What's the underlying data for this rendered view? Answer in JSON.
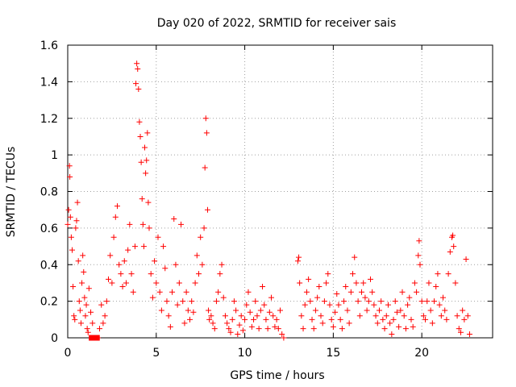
{
  "chart_data": {
    "type": "scatter",
    "title": "Day 020 of 2022, SRMTID for receiver sais",
    "xlabel": "GPS time / hours",
    "ylabel": "SRMTID / TECUs",
    "xlim": [
      0,
      24
    ],
    "ylim": [
      0,
      1.6
    ],
    "xticks": [
      0,
      5,
      10,
      15,
      20
    ],
    "xtick_labels": [
      "0",
      "5",
      "10",
      "15",
      "20"
    ],
    "yticks": [
      0,
      0.2,
      0.4,
      0.6,
      0.8,
      1.0,
      1.2,
      1.4,
      1.6
    ],
    "ytick_labels": [
      "0",
      "0.2",
      "0.4",
      "0.6",
      "0.8",
      "1",
      "1.2",
      "1.4",
      "1.6"
    ],
    "grid": true,
    "legend": "none",
    "marker": "+",
    "color": "#ff0000",
    "series": [
      {
        "name": "SRMTID",
        "points": [
          [
            0.0,
            0.62
          ],
          [
            0.05,
            0.7
          ],
          [
            0.1,
            0.94
          ],
          [
            0.12,
            0.88
          ],
          [
            0.15,
            0.66
          ],
          [
            0.2,
            0.55
          ],
          [
            0.25,
            0.48
          ],
          [
            0.3,
            0.28
          ],
          [
            0.35,
            0.12
          ],
          [
            0.4,
            0.1
          ],
          [
            0.45,
            0.6
          ],
          [
            0.5,
            0.64
          ],
          [
            0.55,
            0.74
          ],
          [
            0.6,
            0.42
          ],
          [
            0.65,
            0.2
          ],
          [
            0.7,
            0.15
          ],
          [
            0.75,
            0.08
          ],
          [
            0.8,
            0.3
          ],
          [
            0.85,
            0.45
          ],
          [
            0.9,
            0.36
          ],
          [
            0.95,
            0.22
          ],
          [
            1.0,
            0.12
          ],
          [
            1.05,
            0.18
          ],
          [
            1.1,
            0.05
          ],
          [
            1.15,
            0.03
          ],
          [
            1.2,
            0.27
          ],
          [
            1.3,
            0.14
          ],
          [
            1.4,
            0.08
          ],
          [
            1.5,
            0.0
          ],
          [
            1.6,
            0.0
          ],
          [
            1.7,
            0.0
          ],
          [
            1.8,
            0.05
          ],
          [
            1.9,
            0.18
          ],
          [
            2.0,
            0.08
          ],
          [
            2.1,
            0.12
          ],
          [
            2.2,
            0.2
          ],
          [
            2.3,
            0.32
          ],
          [
            2.4,
            0.45
          ],
          [
            2.5,
            0.3
          ],
          [
            2.6,
            0.55
          ],
          [
            2.7,
            0.66
          ],
          [
            2.8,
            0.72
          ],
          [
            2.9,
            0.4
          ],
          [
            3.0,
            0.35
          ],
          [
            3.1,
            0.28
          ],
          [
            3.2,
            0.42
          ],
          [
            3.3,
            0.3
          ],
          [
            3.4,
            0.48
          ],
          [
            3.5,
            0.62
          ],
          [
            3.6,
            0.35
          ],
          [
            3.7,
            0.25
          ],
          [
            3.8,
            0.5
          ],
          [
            3.85,
            1.39
          ],
          [
            3.9,
            1.5
          ],
          [
            3.95,
            1.47
          ],
          [
            4.0,
            1.36
          ],
          [
            4.05,
            1.18
          ],
          [
            4.1,
            1.1
          ],
          [
            4.15,
            0.96
          ],
          [
            4.2,
            0.76
          ],
          [
            4.25,
            0.62
          ],
          [
            4.3,
            0.5
          ],
          [
            4.35,
            1.04
          ],
          [
            4.4,
            0.9
          ],
          [
            4.45,
            0.97
          ],
          [
            4.5,
            1.12
          ],
          [
            4.55,
            0.74
          ],
          [
            4.6,
            0.6
          ],
          [
            4.7,
            0.35
          ],
          [
            4.8,
            0.22
          ],
          [
            4.9,
            0.42
          ],
          [
            5.0,
            0.3
          ],
          [
            5.1,
            0.55
          ],
          [
            5.2,
            0.25
          ],
          [
            5.3,
            0.15
          ],
          [
            5.4,
            0.5
          ],
          [
            5.5,
            0.38
          ],
          [
            5.6,
            0.2
          ],
          [
            5.7,
            0.12
          ],
          [
            5.8,
            0.06
          ],
          [
            5.9,
            0.25
          ],
          [
            6.0,
            0.65
          ],
          [
            6.1,
            0.4
          ],
          [
            6.2,
            0.18
          ],
          [
            6.3,
            0.3
          ],
          [
            6.4,
            0.62
          ],
          [
            6.5,
            0.2
          ],
          [
            6.6,
            0.08
          ],
          [
            6.7,
            0.25
          ],
          [
            6.8,
            0.15
          ],
          [
            6.9,
            0.1
          ],
          [
            7.0,
            0.2
          ],
          [
            7.1,
            0.14
          ],
          [
            7.2,
            0.3
          ],
          [
            7.3,
            0.45
          ],
          [
            7.4,
            0.35
          ],
          [
            7.5,
            0.55
          ],
          [
            7.6,
            0.4
          ],
          [
            7.7,
            0.6
          ],
          [
            7.75,
            0.93
          ],
          [
            7.8,
            1.2
          ],
          [
            7.85,
            1.12
          ],
          [
            7.9,
            0.7
          ],
          [
            7.95,
            0.15
          ],
          [
            8.0,
            0.1
          ],
          [
            8.1,
            0.12
          ],
          [
            8.2,
            0.08
          ],
          [
            8.3,
            0.05
          ],
          [
            8.4,
            0.2
          ],
          [
            8.5,
            0.25
          ],
          [
            8.6,
            0.35
          ],
          [
            8.7,
            0.4
          ],
          [
            8.8,
            0.22
          ],
          [
            8.9,
            0.12
          ],
          [
            9.0,
            0.08
          ],
          [
            9.1,
            0.05
          ],
          [
            9.2,
            0.03
          ],
          [
            9.3,
            0.1
          ],
          [
            9.4,
            0.2
          ],
          [
            9.5,
            0.15
          ],
          [
            9.6,
            0.02
          ],
          [
            9.7,
            0.07
          ],
          [
            9.8,
            0.12
          ],
          [
            9.9,
            0.04
          ],
          [
            10.0,
            0.1
          ],
          [
            10.1,
            0.18
          ],
          [
            10.2,
            0.25
          ],
          [
            10.3,
            0.14
          ],
          [
            10.4,
            0.06
          ],
          [
            10.5,
            0.1
          ],
          [
            10.6,
            0.2
          ],
          [
            10.7,
            0.12
          ],
          [
            10.8,
            0.05
          ],
          [
            10.9,
            0.15
          ],
          [
            11.0,
            0.28
          ],
          [
            11.1,
            0.18
          ],
          [
            11.2,
            0.1
          ],
          [
            11.3,
            0.05
          ],
          [
            11.4,
            0.14
          ],
          [
            11.5,
            0.22
          ],
          [
            11.6,
            0.12
          ],
          [
            11.7,
            0.06
          ],
          [
            11.8,
            0.1
          ],
          [
            11.9,
            0.05
          ],
          [
            12.0,
            0.15
          ],
          [
            12.1,
            0.02
          ],
          [
            12.2,
            0.0
          ],
          [
            13.0,
            0.42
          ],
          [
            13.05,
            0.44
          ],
          [
            13.1,
            0.3
          ],
          [
            13.2,
            0.12
          ],
          [
            13.3,
            0.05
          ],
          [
            13.4,
            0.18
          ],
          [
            13.5,
            0.25
          ],
          [
            13.6,
            0.32
          ],
          [
            13.7,
            0.2
          ],
          [
            13.8,
            0.1
          ],
          [
            13.9,
            0.05
          ],
          [
            14.0,
            0.15
          ],
          [
            14.1,
            0.22
          ],
          [
            14.2,
            0.28
          ],
          [
            14.3,
            0.12
          ],
          [
            14.4,
            0.08
          ],
          [
            14.5,
            0.2
          ],
          [
            14.6,
            0.3
          ],
          [
            14.7,
            0.35
          ],
          [
            14.8,
            0.18
          ],
          [
            14.9,
            0.1
          ],
          [
            15.0,
            0.06
          ],
          [
            15.1,
            0.14
          ],
          [
            15.2,
            0.24
          ],
          [
            15.3,
            0.18
          ],
          [
            15.4,
            0.1
          ],
          [
            15.5,
            0.05
          ],
          [
            15.6,
            0.2
          ],
          [
            15.7,
            0.28
          ],
          [
            15.8,
            0.15
          ],
          [
            15.9,
            0.08
          ],
          [
            16.0,
            0.25
          ],
          [
            16.1,
            0.35
          ],
          [
            16.2,
            0.44
          ],
          [
            16.3,
            0.3
          ],
          [
            16.4,
            0.2
          ],
          [
            16.5,
            0.12
          ],
          [
            16.6,
            0.25
          ],
          [
            16.7,
            0.3
          ],
          [
            16.8,
            0.22
          ],
          [
            16.9,
            0.15
          ],
          [
            17.0,
            0.2
          ],
          [
            17.1,
            0.32
          ],
          [
            17.2,
            0.25
          ],
          [
            17.3,
            0.18
          ],
          [
            17.4,
            0.12
          ],
          [
            17.5,
            0.08
          ],
          [
            17.6,
            0.15
          ],
          [
            17.7,
            0.2
          ],
          [
            17.8,
            0.1
          ],
          [
            17.9,
            0.05
          ],
          [
            18.0,
            0.12
          ],
          [
            18.1,
            0.18
          ],
          [
            18.2,
            0.08
          ],
          [
            18.3,
            0.02
          ],
          [
            18.4,
            0.1
          ],
          [
            18.5,
            0.2
          ],
          [
            18.6,
            0.14
          ],
          [
            18.7,
            0.06
          ],
          [
            18.8,
            0.15
          ],
          [
            18.9,
            0.25
          ],
          [
            19.0,
            0.12
          ],
          [
            19.1,
            0.05
          ],
          [
            19.2,
            0.18
          ],
          [
            19.3,
            0.22
          ],
          [
            19.4,
            0.1
          ],
          [
            19.5,
            0.06
          ],
          [
            19.6,
            0.3
          ],
          [
            19.7,
            0.25
          ],
          [
            19.8,
            0.45
          ],
          [
            19.85,
            0.53
          ],
          [
            19.9,
            0.4
          ],
          [
            20.0,
            0.2
          ],
          [
            20.1,
            0.12
          ],
          [
            20.2,
            0.1
          ],
          [
            20.3,
            0.2
          ],
          [
            20.4,
            0.3
          ],
          [
            20.5,
            0.15
          ],
          [
            20.6,
            0.08
          ],
          [
            20.7,
            0.2
          ],
          [
            20.8,
            0.28
          ],
          [
            20.9,
            0.35
          ],
          [
            21.0,
            0.18
          ],
          [
            21.1,
            0.12
          ],
          [
            21.2,
            0.22
          ],
          [
            21.3,
            0.15
          ],
          [
            21.4,
            0.1
          ],
          [
            21.5,
            0.35
          ],
          [
            21.6,
            0.47
          ],
          [
            21.7,
            0.55
          ],
          [
            21.75,
            0.56
          ],
          [
            21.8,
            0.5
          ],
          [
            21.9,
            0.3
          ],
          [
            22.0,
            0.12
          ],
          [
            22.1,
            0.05
          ],
          [
            22.2,
            0.03
          ],
          [
            22.3,
            0.15
          ],
          [
            22.4,
            0.1
          ],
          [
            22.5,
            0.43
          ],
          [
            22.6,
            0.12
          ],
          [
            22.7,
            0.02
          ]
        ],
        "square_markers": [
          [
            1.35,
            0.0
          ],
          [
            1.45,
            0.0
          ],
          [
            1.55,
            0.0
          ],
          [
            1.65,
            0.0
          ]
        ]
      }
    ]
  }
}
